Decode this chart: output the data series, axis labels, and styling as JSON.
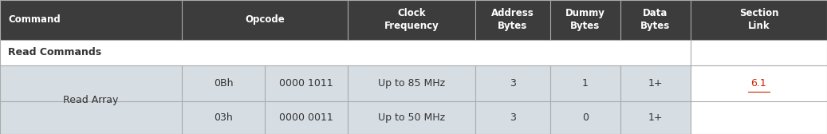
{
  "header_bg": "#3c3c3c",
  "header_fg": "#ffffff",
  "section_bg": "#ffffff",
  "section_fg": "#333333",
  "row_bg": "#d6dde3",
  "row_fg": "#333333",
  "divider_color": "#aaaaaa",
  "link_color": "#cc2200",
  "header_labels": [
    "Command",
    "Opcode",
    "Clock\nFrequency",
    "Address\nBytes",
    "Dummy\nBytes",
    "Data\nBytes",
    "Section\nLink"
  ],
  "section_label": "Read Commands",
  "row_label": "Read Array",
  "data_rows": [
    [
      "0Bh",
      "0000 1011",
      "Up to 85 MHz",
      "3",
      "1",
      "1+",
      "6.1"
    ],
    [
      "03h",
      "0000 0011",
      "Up to 50 MHz",
      "3",
      "0",
      "1+",
      ""
    ]
  ],
  "fig_width": 10.37,
  "fig_height": 1.68,
  "dpi": 100
}
